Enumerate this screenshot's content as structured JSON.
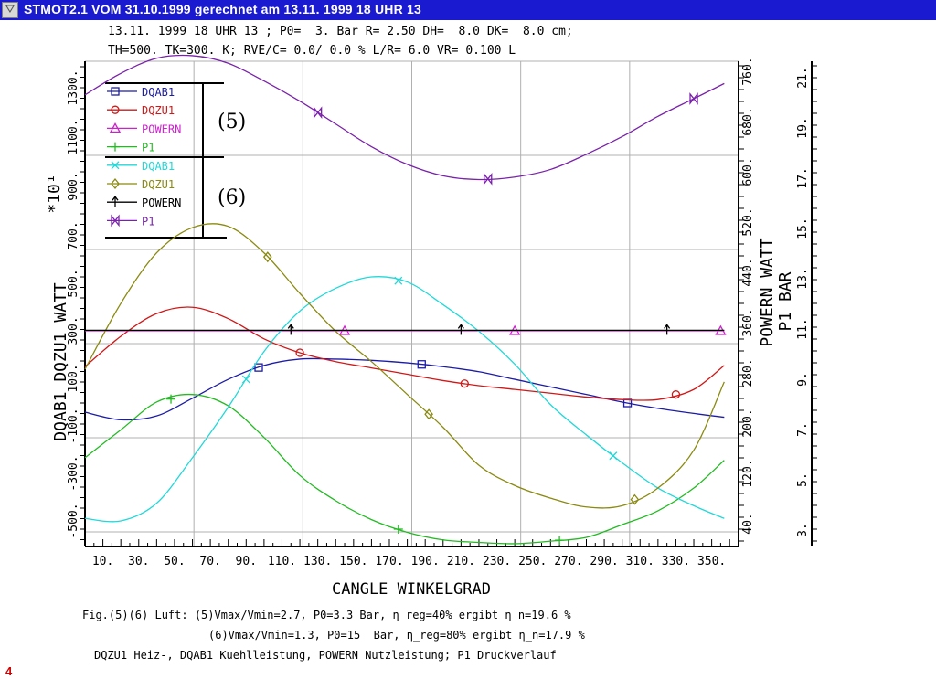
{
  "window": {
    "title": "STMOT2.1 VOM 31.10.1999 gerechnet am 13.11. 1999 18 UHR 13",
    "system_icon": "window-menu-icon"
  },
  "header": {
    "line1": "13.11. 1999 18 UHR 13 ; P0=  3. Bar R= 2.50 DH=  8.0 DK=  8.0 cm;",
    "line2": "TH=500. TK=300. K; RVE/C= 0.0/ 0.0 % L/R= 6.0 VR= 0.100 L"
  },
  "caption": {
    "line1": "Fig.(5)(6) Luft: (5)Vmax/Vmin=2.7, P0=3.3 Bar, η_reg=40% ergibt η_n=19.6 %",
    "line2": "(6)Vmax/Vmin=1.3, P0=15  Bar, η_reg=80% ergibt η_n=17.9 %",
    "line3": "DQZU1 Heiz-, DQAB1 Kuehlleistung, POWERN Nutzleistung; P1 Druckverlauf"
  },
  "page_mark": "4",
  "chart_data": {
    "type": "line",
    "xlabel": "CANGLE WINKELGRAD",
    "xlim": [
      0,
      365
    ],
    "x_ticks": [
      "10.",
      "30.",
      "50.",
      "70.",
      "90.",
      "110.",
      "130.",
      "150.",
      "170.",
      "190.",
      "210.",
      "230.",
      "250.",
      "270.",
      "290.",
      "310.",
      "330.",
      "350."
    ],
    "left_axis": {
      "label": "DQAB1 DQZU1 WATT",
      "scale_label": "*10¹",
      "lower_ticks": [
        "-500.",
        "-300.",
        "-100.",
        "100.",
        "300.",
        "500."
      ],
      "upper_ticks": [
        "700.",
        "900.",
        "1100.",
        "1300."
      ]
    },
    "right_axis_1": {
      "label": "POWERN WATT",
      "ticks": [
        "40.",
        "120.",
        "200.",
        "280.",
        "360.",
        "440.",
        "520.",
        "600.",
        "680.",
        "760."
      ]
    },
    "right_axis_2": {
      "label": "P1 BAR",
      "ticks": [
        "3.",
        "5.",
        "7.",
        "9.",
        "11.",
        "13.",
        "15.",
        "17.",
        "19.",
        "21."
      ]
    },
    "legend_position": "top-left",
    "legend_groups": [
      {
        "label": "(5)",
        "entries": [
          "DQAB1",
          "DQZU1",
          "POWERN",
          "P1"
        ]
      },
      {
        "label": "(6)",
        "entries": [
          "DQAB1",
          "DQZU1",
          "POWERN",
          "P1"
        ]
      }
    ],
    "series": [
      {
        "name": "DQAB1",
        "group": "(5)",
        "color": "#1c1ca8",
        "marker": "square",
        "x": [
          0,
          20,
          40,
          60,
          80,
          100,
          120,
          140,
          160,
          180,
          200,
          220,
          240,
          260,
          280,
          300,
          320,
          340,
          360
        ],
        "y": [
          -70,
          -100,
          -85,
          -15,
          60,
          115,
          140,
          140,
          135,
          125,
          110,
          90,
          60,
          30,
          0,
          -30,
          -55,
          -75,
          -90
        ],
        "marker_x": [
          97,
          188,
          303
        ]
      },
      {
        "name": "DQZU1",
        "group": "(5)",
        "color": "#d01818",
        "marker": "circle",
        "x": [
          0,
          20,
          40,
          60,
          80,
          100,
          120,
          140,
          160,
          180,
          200,
          220,
          240,
          260,
          280,
          300,
          320,
          340,
          360
        ],
        "y": [
          110,
          230,
          320,
          345,
          300,
          220,
          165,
          130,
          105,
          80,
          55,
          35,
          20,
          5,
          -10,
          -20,
          -20,
          20,
          115
        ],
        "marker_x": [
          120,
          212,
          330
        ]
      },
      {
        "name": "POWERN",
        "group": "(5)",
        "color": "#cc22cc",
        "marker": "triangle-up",
        "x": [
          0,
          360
        ],
        "y": [
          252,
          252
        ],
        "marker_x": [
          145,
          240,
          355
        ]
      },
      {
        "name": "P1",
        "group": "(5)",
        "color": "#22bb22",
        "marker": "plus",
        "x": [
          0,
          20,
          40,
          60,
          80,
          100,
          120,
          140,
          160,
          180,
          200,
          220,
          240,
          260,
          280,
          300,
          320,
          340,
          360
        ],
        "y": [
          -250,
          -140,
          -30,
          0,
          -45,
          -170,
          -320,
          -420,
          -495,
          -545,
          -575,
          -585,
          -590,
          -580,
          -565,
          -515,
          -460,
          -370,
          -260
        ],
        "marker_x": [
          48,
          175,
          265
        ]
      },
      {
        "name": "DQAB1",
        "group": "(6)",
        "color": "#22d8d8",
        "marker": "x",
        "x": [
          0,
          20,
          40,
          60,
          80,
          100,
          120,
          140,
          160,
          180,
          200,
          220,
          240,
          260,
          280,
          300,
          320,
          340,
          360
        ],
        "y": [
          -490,
          -500,
          -430,
          -250,
          -50,
          170,
          330,
          420,
          465,
          445,
          355,
          250,
          120,
          -40,
          -160,
          -270,
          -370,
          -440,
          -490
        ],
        "marker_x": [
          90,
          175,
          295
        ]
      },
      {
        "name": "DQZU1",
        "group": "(6)",
        "color": "#8a8a10",
        "marker": "diamond",
        "x": [
          0,
          20,
          40,
          60,
          80,
          100,
          120,
          140,
          160,
          180,
          200,
          220,
          240,
          260,
          280,
          300,
          320,
          340,
          360
        ],
        "y": [
          100,
          360,
          560,
          660,
          665,
          560,
          400,
          250,
          130,
          0,
          -130,
          -280,
          -360,
          -410,
          -445,
          -440,
          -370,
          -220,
          50
        ],
        "marker_x": [
          102,
          192,
          307
        ]
      },
      {
        "name": "POWERN",
        "group": "(6)",
        "color": "#000000",
        "marker": "arrow-up",
        "x": [
          0,
          360
        ],
        "y": [
          254,
          254
        ],
        "marker_x": [
          115,
          210,
          325
        ]
      },
      {
        "name": "P1",
        "group": "(6)",
        "color": "#7a22aa",
        "marker": "bowtie",
        "x": [
          0,
          20,
          40,
          60,
          80,
          100,
          120,
          140,
          160,
          180,
          200,
          220,
          240,
          260,
          280,
          300,
          320,
          340,
          360
        ],
        "y": [
          1185,
          1270,
          1330,
          1340,
          1310,
          1240,
          1160,
          1070,
          980,
          910,
          865,
          850,
          860,
          890,
          950,
          1020,
          1100,
          1170,
          1230
        ],
        "marker_x": [
          130,
          225,
          340
        ]
      }
    ]
  }
}
